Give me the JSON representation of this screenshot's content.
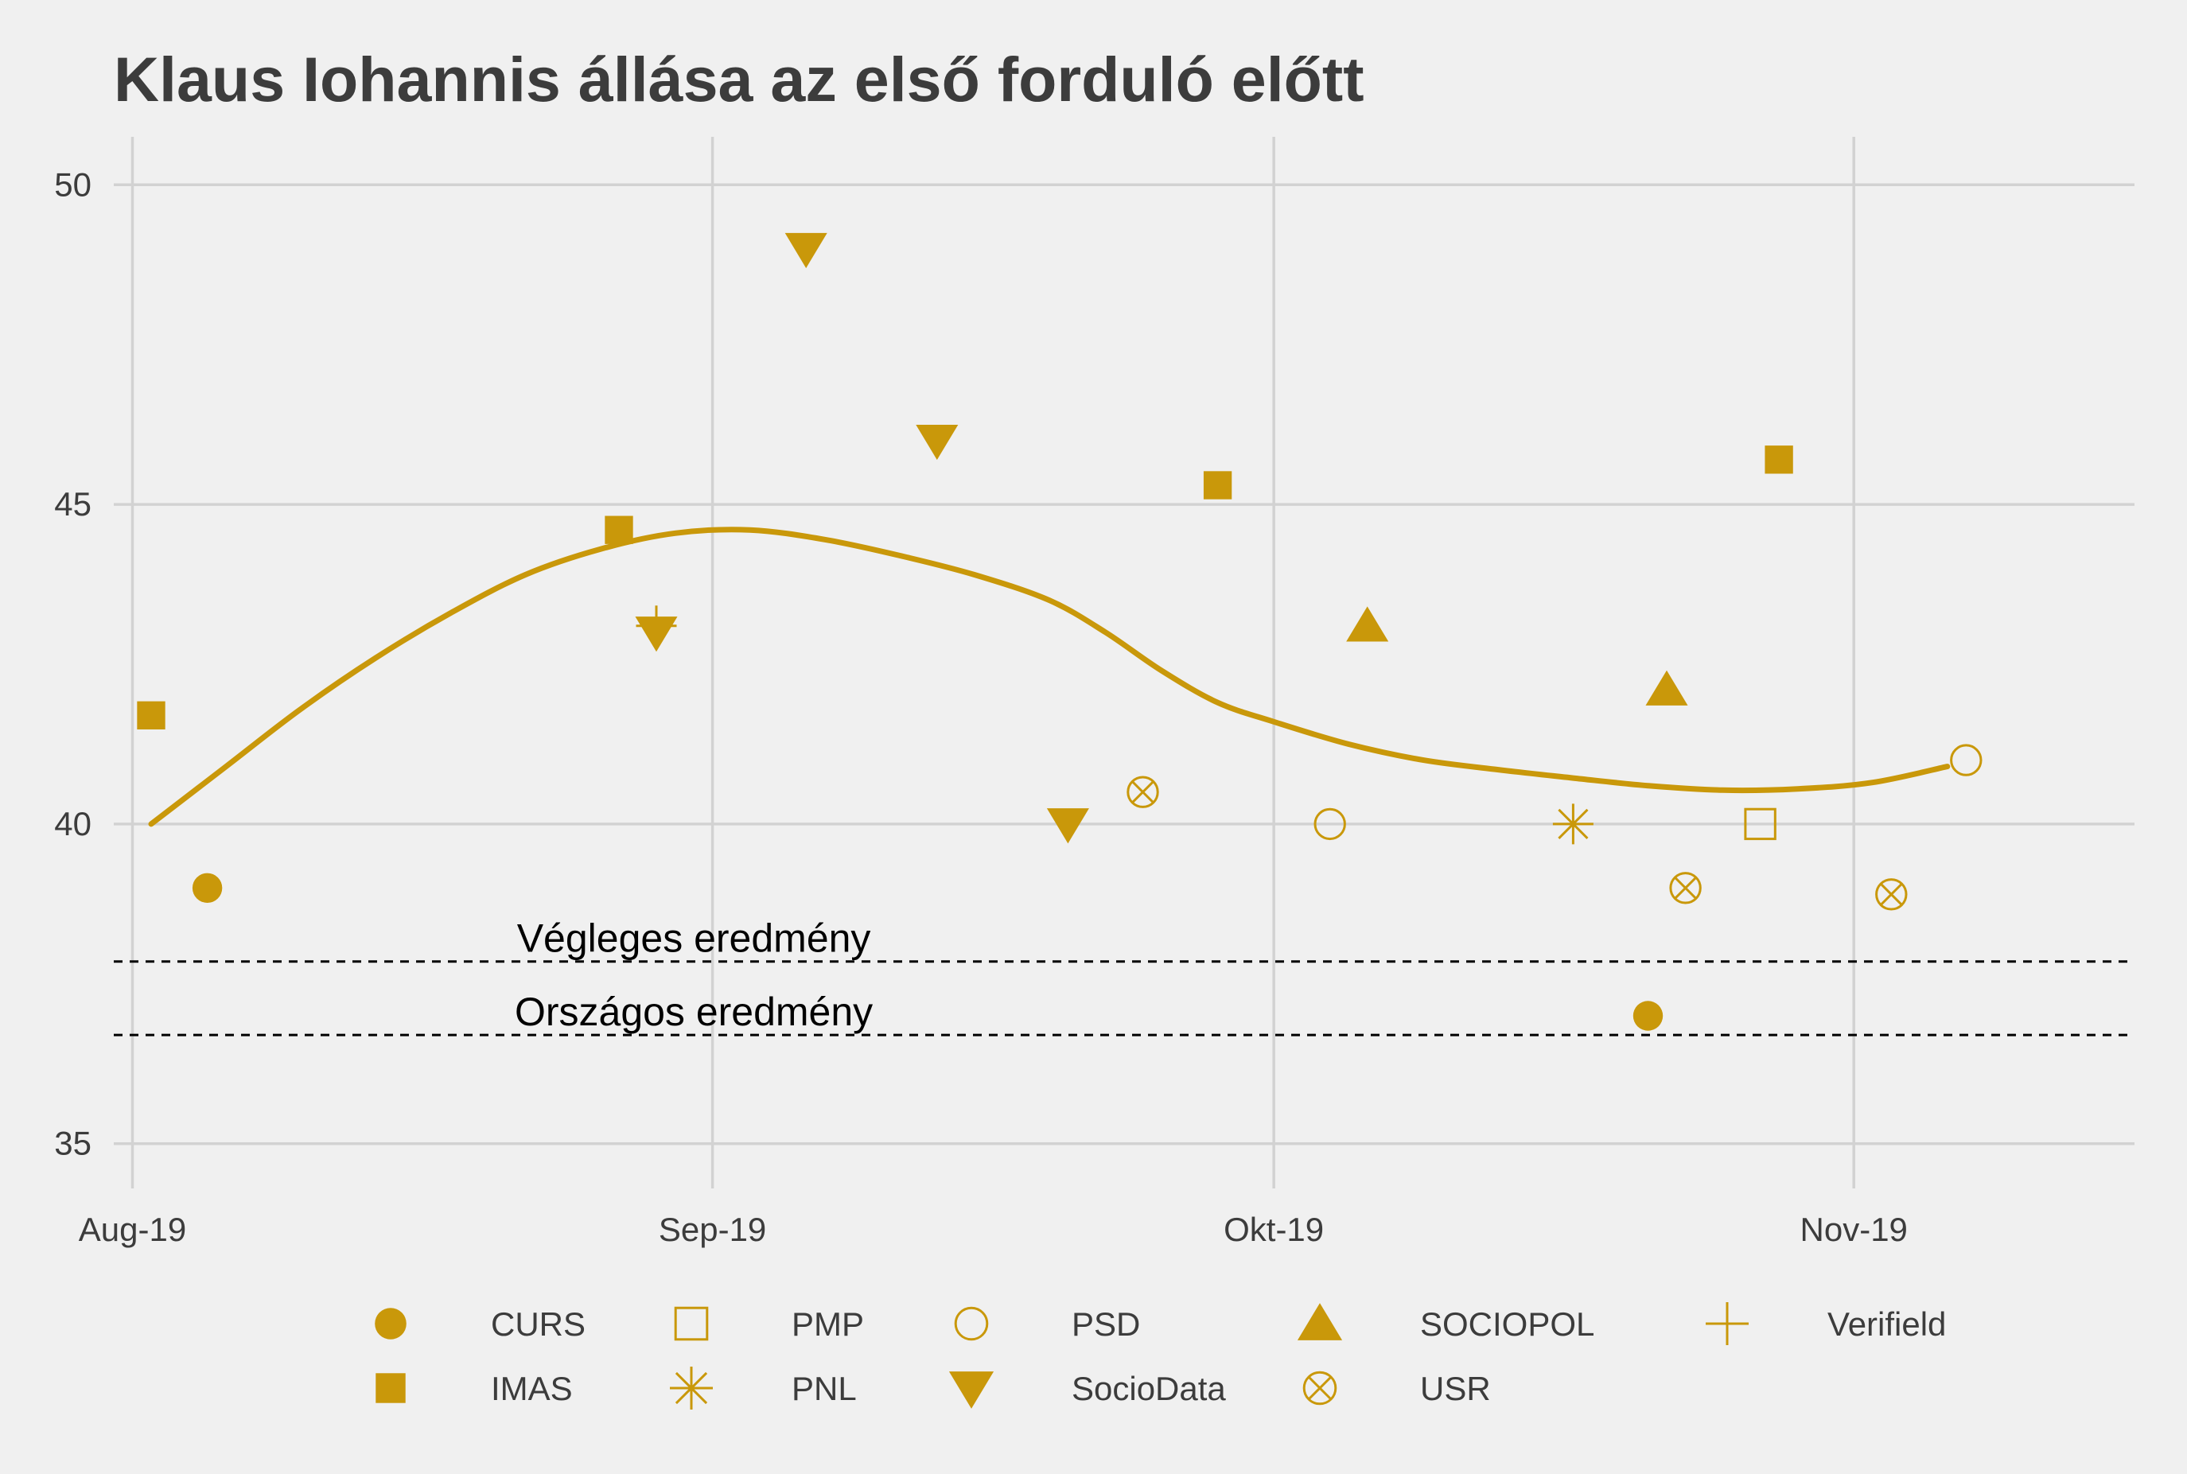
{
  "chart_data": {
    "type": "scatter",
    "title": "Klaus Iohannis állása az első forduló előtt",
    "xlabel": "",
    "ylabel": "",
    "xlim": [
      "2019-07-31",
      "2019-11-16"
    ],
    "ylim": [
      34.3,
      50.75
    ],
    "y_ticks": [
      35,
      40,
      45,
      50
    ],
    "x_ticks": [
      {
        "date": "2019-08-01",
        "label": "Aug-19"
      },
      {
        "date": "2019-09-01",
        "label": "Sep-19"
      },
      {
        "date": "2019-10-01",
        "label": "Okt-19"
      },
      {
        "date": "2019-11-01",
        "label": "Nov-19"
      }
    ],
    "grid": true,
    "legend_position": "bottom",
    "color": "#c9980a",
    "series": [
      {
        "name": "CURS",
        "marker": "filled-circle",
        "points": [
          {
            "x": "2019-08-05",
            "y": 39.0
          },
          {
            "x": "2019-10-21",
            "y": 37.0
          }
        ]
      },
      {
        "name": "IMAS",
        "marker": "filled-square",
        "points": [
          {
            "x": "2019-08-02",
            "y": 41.7
          },
          {
            "x": "2019-08-27",
            "y": 44.6
          },
          {
            "x": "2019-09-28",
            "y": 45.3
          },
          {
            "x": "2019-10-28",
            "y": 45.7
          }
        ]
      },
      {
        "name": "PMP",
        "marker": "open-square",
        "points": [
          {
            "x": "2019-10-27",
            "y": 40.0
          }
        ]
      },
      {
        "name": "PNL",
        "marker": "asterisk",
        "points": [
          {
            "x": "2019-10-17",
            "y": 40.0
          }
        ]
      },
      {
        "name": "PSD",
        "marker": "open-circle",
        "points": [
          {
            "x": "2019-10-04",
            "y": 40.0
          },
          {
            "x": "2019-11-07",
            "y": 41.0
          }
        ]
      },
      {
        "name": "SocioData",
        "marker": "filled-triangle-down",
        "points": [
          {
            "x": "2019-09-06",
            "y": 49.0
          },
          {
            "x": "2019-09-13",
            "y": 46.0
          },
          {
            "x": "2019-08-29",
            "y": 43.0
          },
          {
            "x": "2019-09-20",
            "y": 40.0
          }
        ]
      },
      {
        "name": "SOCIOPOL",
        "marker": "filled-triangle-up",
        "points": [
          {
            "x": "2019-10-06",
            "y": 43.1
          },
          {
            "x": "2019-10-22",
            "y": 42.1
          }
        ]
      },
      {
        "name": "USR",
        "marker": "circle-cross",
        "points": [
          {
            "x": "2019-09-24",
            "y": 40.5
          },
          {
            "x": "2019-10-23",
            "y": 39.0
          },
          {
            "x": "2019-11-03",
            "y": 38.9
          }
        ]
      },
      {
        "name": "Verifield",
        "marker": "plus",
        "points": [
          {
            "x": "2019-08-29",
            "y": 43.1
          }
        ]
      }
    ],
    "trend_line": [
      {
        "x": "2019-08-02",
        "y": 40.0
      },
      {
        "x": "2019-08-06",
        "y": 40.9
      },
      {
        "x": "2019-08-10",
        "y": 41.8
      },
      {
        "x": "2019-08-14",
        "y": 42.6
      },
      {
        "x": "2019-08-18",
        "y": 43.3
      },
      {
        "x": "2019-08-22",
        "y": 43.9
      },
      {
        "x": "2019-08-26",
        "y": 44.3
      },
      {
        "x": "2019-08-30",
        "y": 44.55
      },
      {
        "x": "2019-09-03",
        "y": 44.6
      },
      {
        "x": "2019-09-07",
        "y": 44.45
      },
      {
        "x": "2019-09-11",
        "y": 44.2
      },
      {
        "x": "2019-09-15",
        "y": 43.9
      },
      {
        "x": "2019-09-19",
        "y": 43.5
      },
      {
        "x": "2019-09-22",
        "y": 43.0
      },
      {
        "x": "2019-09-25",
        "y": 42.4
      },
      {
        "x": "2019-09-28",
        "y": 41.9
      },
      {
        "x": "2019-10-01",
        "y": 41.6
      },
      {
        "x": "2019-10-05",
        "y": 41.25
      },
      {
        "x": "2019-10-09",
        "y": 41.0
      },
      {
        "x": "2019-10-13",
        "y": 40.85
      },
      {
        "x": "2019-10-17",
        "y": 40.72
      },
      {
        "x": "2019-10-21",
        "y": 40.6
      },
      {
        "x": "2019-10-25",
        "y": 40.53
      },
      {
        "x": "2019-10-29",
        "y": 40.55
      },
      {
        "x": "2019-11-02",
        "y": 40.65
      },
      {
        "x": "2019-11-06",
        "y": 40.9
      }
    ],
    "reference_lines": [
      {
        "label": "Végleges eredmény",
        "y": 37.85,
        "label_date": "2019-08-31"
      },
      {
        "label": "Országos eredmény",
        "y": 36.7,
        "label_date": "2019-08-31"
      }
    ],
    "legend": {
      "rows": [
        [
          "CURS",
          "PMP",
          "PSD",
          "SOCIOPOL",
          "Verifield"
        ],
        [
          "IMAS",
          "PNL",
          "SocioData",
          "USR"
        ]
      ]
    }
  }
}
